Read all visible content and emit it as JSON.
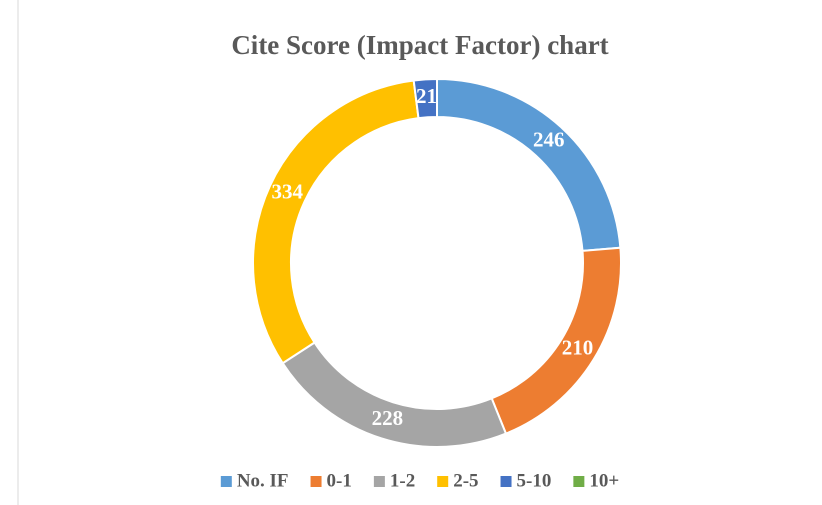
{
  "chart_data": {
    "type": "donut",
    "title": "Cite Score (Impact Factor) chart",
    "categories": [
      "No. IF",
      "0-1",
      "1-2",
      "2-5",
      "5-10",
      "10+"
    ],
    "values": [
      246,
      210,
      228,
      334,
      21,
      0
    ],
    "value_labels": [
      "246",
      "210",
      "228",
      "334",
      "21",
      null
    ],
    "colors": [
      "#5b9bd5",
      "#ed7d31",
      "#a5a5a5",
      "#ffc000",
      "#4472c4",
      "#70ad47"
    ],
    "legend": "bottom"
  }
}
